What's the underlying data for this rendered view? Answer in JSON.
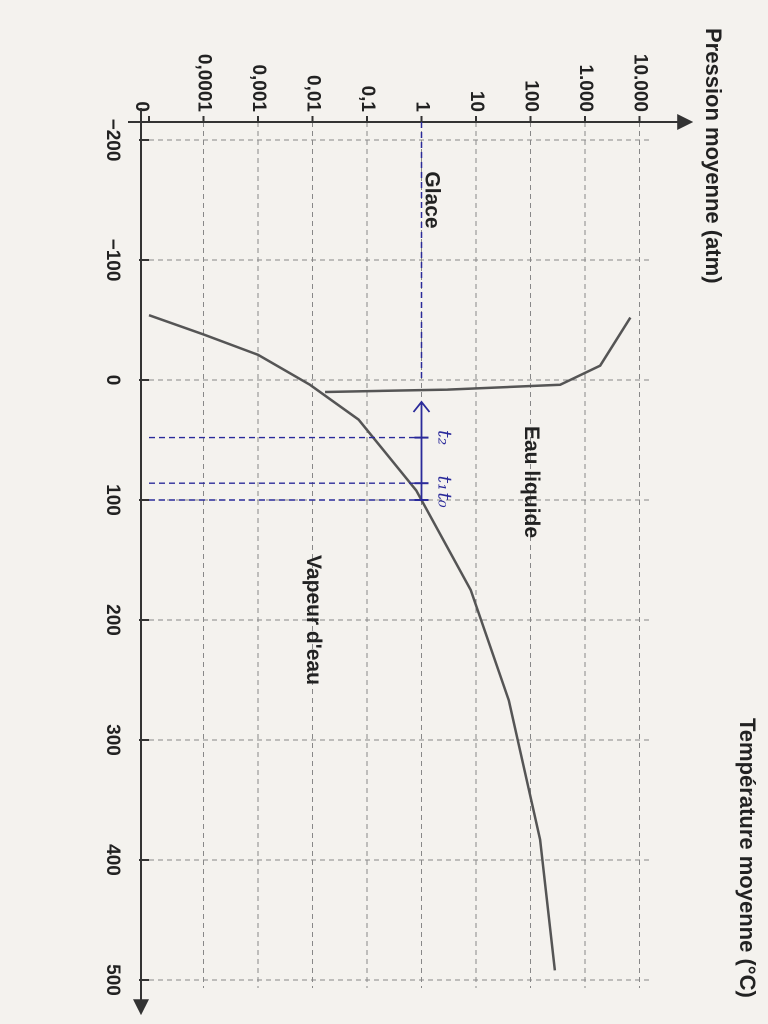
{
  "chart_data": {
    "type": "line",
    "y_label": "Pression moyenne (atm)",
    "x_label": "Température moyenne (°C)",
    "xlim": [
      -215,
      520
    ],
    "xticks": [
      {
        "value": -200,
        "label": "−200"
      },
      {
        "value": -100,
        "label": "−100"
      },
      0,
      100,
      200,
      300,
      400,
      500
    ],
    "ylim": [
      1e-05,
      100000
    ],
    "yscale": "log",
    "yticks": [
      0,
      {
        "value": 0.0001,
        "label": "0,0001"
      },
      {
        "value": 0.001,
        "label": "0,001"
      },
      {
        "value": 0.01,
        "label": "0,01"
      },
      {
        "value": 0.1,
        "label": "0,1"
      },
      1,
      10,
      100,
      {
        "value": 1000,
        "label": "1.000"
      },
      {
        "value": 10000,
        "label": "10.000"
      }
    ],
    "grid": true,
    "series": [
      {
        "color": "#555555",
        "x": [
          -54,
          -38,
          -21,
          4,
          33,
          92,
          175,
          267,
          383,
          492
        ],
        "values": [
          1e-05,
          0.0001,
          0.001,
          0.009,
          0.07,
          0.8,
          8,
          40,
          150,
          280
        ]
      },
      {
        "color": "#555555",
        "x": [
          10,
          8,
          4,
          -12,
          -52
        ],
        "values": [
          0.017,
          3,
          350,
          1900,
          6800
        ]
      }
    ],
    "annotations": [
      {
        "text": "Glace",
        "x": -150,
        "y": 1.5
      },
      {
        "text": "Eau liquide",
        "x": 85,
        "y": 100
      },
      {
        "text": "Vapeur d'eau",
        "x": 200,
        "y": 0.01
      }
    ],
    "guides": {
      "color": "#2a2a9a",
      "pressure": 1,
      "temperatures": [
        48,
        86,
        100
      ],
      "labels": [
        "t₂",
        "t₁",
        "t₀"
      ]
    }
  }
}
